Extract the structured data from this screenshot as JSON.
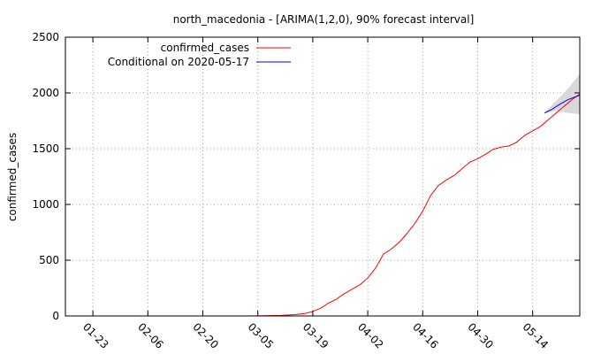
{
  "chart_data": {
    "type": "line",
    "title": "north_macedonia -  [ARIMA(1,2,0), 90% forecast interval]",
    "xlabel": "",
    "ylabel": "confirmed_cases",
    "x_range": [
      "2020-01-16",
      "2020-05-26"
    ],
    "ylim": [
      0,
      2500
    ],
    "grid": true,
    "legend_position": "top-left",
    "x_tick_labels": [
      "01-23",
      "02-06",
      "02-20",
      "03-05",
      "03-19",
      "04-02",
      "04-16",
      "04-30",
      "05-14"
    ],
    "y_tick_labels": [
      "0",
      "500",
      "1000",
      "1500",
      "2000",
      "2500"
    ],
    "y_ticks": [
      0,
      500,
      1000,
      1500,
      2000,
      2500
    ],
    "colors": {
      "confirmed": "#ff0000",
      "forecast": "#0000ff",
      "band": "#d9d9d9"
    },
    "series": [
      {
        "name": "confirmed_cases",
        "points": [
          [
            "2020-03-02",
            0
          ],
          [
            "2020-03-05",
            1
          ],
          [
            "2020-03-08",
            3
          ],
          [
            "2020-03-11",
            5
          ],
          [
            "2020-03-13",
            9
          ],
          [
            "2020-03-15",
            14
          ],
          [
            "2020-03-17",
            22
          ],
          [
            "2020-03-19",
            40
          ],
          [
            "2020-03-21",
            70
          ],
          [
            "2020-03-23",
            115
          ],
          [
            "2020-03-25",
            150
          ],
          [
            "2020-03-27",
            200
          ],
          [
            "2020-03-29",
            240
          ],
          [
            "2020-03-31",
            280
          ],
          [
            "2020-04-02",
            340
          ],
          [
            "2020-04-04",
            430
          ],
          [
            "2020-04-06",
            555
          ],
          [
            "2020-04-08",
            600
          ],
          [
            "2020-04-10",
            660
          ],
          [
            "2020-04-12",
            740
          ],
          [
            "2020-04-14",
            830
          ],
          [
            "2020-04-16",
            940
          ],
          [
            "2020-04-18",
            1080
          ],
          [
            "2020-04-20",
            1170
          ],
          [
            "2020-04-22",
            1220
          ],
          [
            "2020-04-24",
            1260
          ],
          [
            "2020-04-26",
            1320
          ],
          [
            "2020-04-28",
            1380
          ],
          [
            "2020-04-30",
            1410
          ],
          [
            "2020-05-02",
            1450
          ],
          [
            "2020-05-04",
            1495
          ],
          [
            "2020-05-06",
            1515
          ],
          [
            "2020-05-08",
            1525
          ],
          [
            "2020-05-10",
            1560
          ],
          [
            "2020-05-12",
            1620
          ],
          [
            "2020-05-14",
            1660
          ],
          [
            "2020-05-16",
            1700
          ],
          [
            "2020-05-18",
            1760
          ],
          [
            "2020-05-20",
            1820
          ],
          [
            "2020-05-22",
            1880
          ],
          [
            "2020-05-24",
            1940
          ],
          [
            "2020-05-26",
            1990
          ]
        ]
      },
      {
        "name": "Conditional on 2020-05-17",
        "points": [
          [
            "2020-05-17",
            1820
          ],
          [
            "2020-05-19",
            1855
          ],
          [
            "2020-05-21",
            1900
          ],
          [
            "2020-05-23",
            1940
          ],
          [
            "2020-05-26",
            1980
          ]
        ],
        "interval_90": {
          "upper": [
            [
              "2020-05-17",
              1825
            ],
            [
              "2020-05-20",
              1930
            ],
            [
              "2020-05-23",
              2040
            ],
            [
              "2020-05-26",
              2170
            ]
          ],
          "lower": [
            [
              "2020-05-17",
              1815
            ],
            [
              "2020-05-20",
              1840
            ],
            [
              "2020-05-23",
              1820
            ],
            [
              "2020-05-26",
              1810
            ]
          ]
        }
      }
    ]
  }
}
